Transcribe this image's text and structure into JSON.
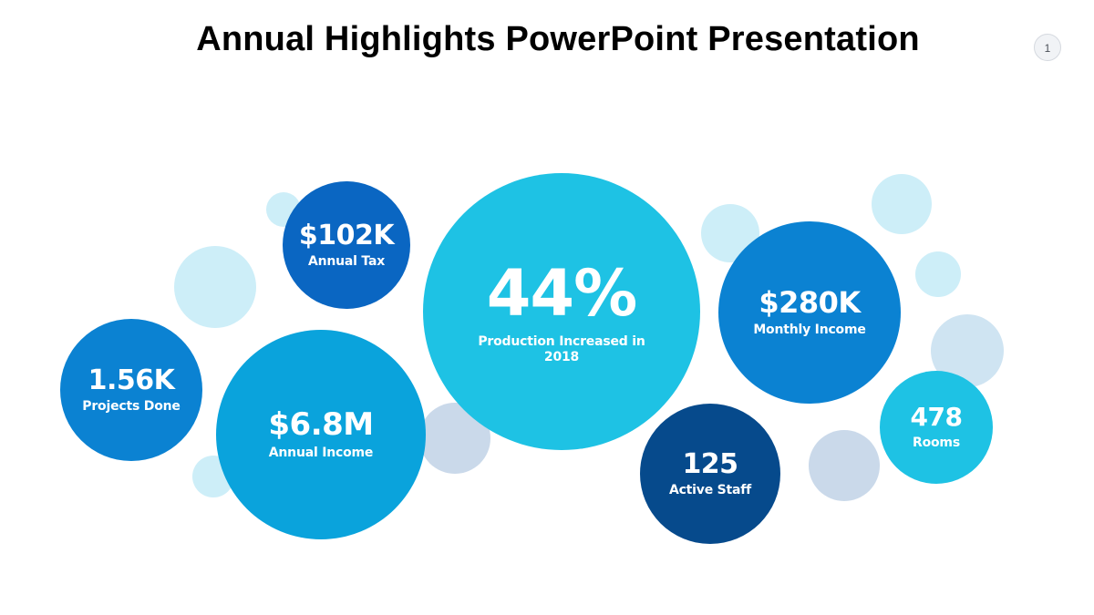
{
  "slide": {
    "title": "Annual Highlights PowerPoint Presentation",
    "page_number": "1"
  },
  "stats": {
    "annual_tax": {
      "value": "$102K",
      "label": "Annual Tax"
    },
    "projects_done": {
      "value": "1.56K",
      "label": "Projects Done"
    },
    "annual_income": {
      "value": "$6.8M",
      "label": "Annual Income"
    },
    "production": {
      "value": "44%",
      "label": "Production Increased in 2018"
    },
    "monthly_income": {
      "value": "$280K",
      "label": "Monthly Income"
    },
    "active_staff": {
      "value": "125",
      "label": "Active Staff"
    },
    "rooms": {
      "value": "478",
      "label": "Rooms"
    }
  },
  "colors": {
    "dark_navy": "#064a8c",
    "royal_blue": "#0a66c2",
    "medium_blue": "#0b82d2",
    "bright_blue": "#0aa3dc",
    "cyan": "#1ec2e4",
    "pale_cyan": "#cdeef8",
    "pale_slate": "#cad9ea"
  }
}
